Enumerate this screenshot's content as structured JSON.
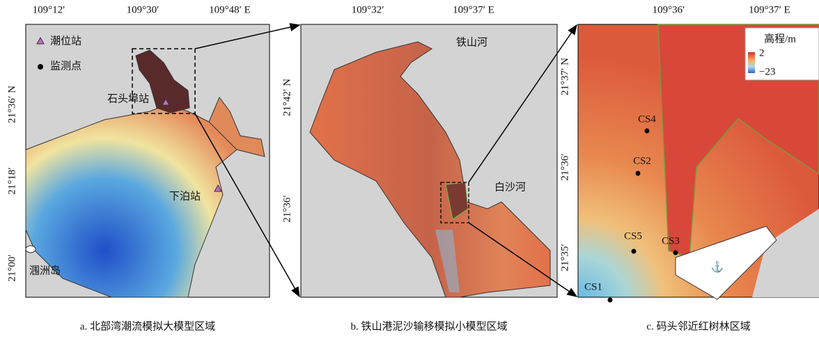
{
  "panel_a": {
    "lon_labels": [
      "109°12′",
      "109°30′",
      "109°48′ E"
    ],
    "lat_labels": [
      "21°36′ N",
      "21°18′",
      "21°00′"
    ],
    "legend": [
      "潮位站",
      "监测点"
    ],
    "stations": [
      "石头埠站",
      "下泊站"
    ],
    "island": "涠洲岛",
    "caption": "a. 北部湾潮流模拟大模型区域"
  },
  "panel_b": {
    "lon_labels": [
      "109°32′",
      "109°37′ E"
    ],
    "lat_labels": [
      "21°42′ N",
      "21°36′"
    ],
    "rivers": [
      "铁山河",
      "白沙河"
    ],
    "caption": "b. 铁山港泥沙输移模拟小模型区域"
  },
  "panel_c": {
    "lon_labels": [
      "109°36′",
      "109°37′ E"
    ],
    "lat_labels": [
      "21°37′ N",
      "21°36′",
      "21°35′"
    ],
    "legend": {
      "title": "高程/m",
      "max": "2",
      "min": "−23"
    },
    "points": [
      "CS4",
      "CS2",
      "CS5",
      "CS3",
      "CS1"
    ],
    "caption": "c. 码头邻近红树林区域"
  }
}
